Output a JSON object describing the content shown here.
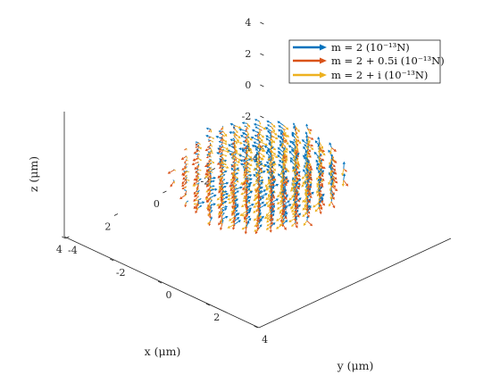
{
  "chart_data": {
    "type": "quiver3",
    "xlabel": "x (μm)",
    "ylabel": "y (μm)",
    "zlabel": "z (μm)",
    "xlim": [
      -4,
      4
    ],
    "ylim": [
      -4,
      4
    ],
    "zlim": [
      -4,
      4
    ],
    "xticks": [
      "-4",
      "-2",
      "0",
      "2",
      "4"
    ],
    "yticks": [
      "-4",
      "-2",
      "0",
      "2",
      "4"
    ],
    "zticks": [
      "4",
      "2",
      "0",
      "-2",
      "-4"
    ],
    "grid": false,
    "legend_position": "top-right",
    "sphere_radius": 2.5,
    "series": [
      {
        "name": "m = 2 (10⁻¹³N)",
        "color": "#0072BD"
      },
      {
        "name": "m = 2 + 0.5i (10⁻¹³N)",
        "color": "#D95319"
      },
      {
        "name": "m = 2 + i (10⁻¹³N)",
        "color": "#EDB120"
      }
    ]
  }
}
